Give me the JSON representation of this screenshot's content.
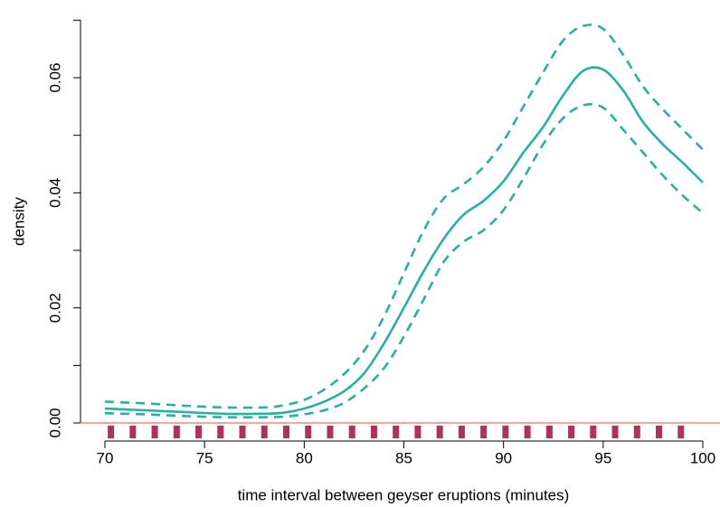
{
  "chart_data": {
    "type": "line",
    "xlabel": "time interval between geyser eruptions (minutes)",
    "ylabel": "density",
    "x": [
      70,
      72,
      74,
      76,
      78,
      79,
      80,
      81,
      82,
      83,
      84,
      85,
      86,
      87,
      88,
      89,
      90,
      91,
      92,
      93,
      94,
      95,
      96,
      97,
      98,
      99,
      100
    ],
    "series": [
      {
        "name": "estimate",
        "color": "#26b0a6",
        "dash": false,
        "values": [
          0.0025,
          0.0022,
          0.0019,
          0.0016,
          0.0016,
          0.0018,
          0.0025,
          0.0037,
          0.0055,
          0.0086,
          0.0138,
          0.02,
          0.0264,
          0.032,
          0.0362,
          0.0386,
          0.042,
          0.047,
          0.0515,
          0.057,
          0.0612,
          0.0614,
          0.0578,
          0.0523,
          0.0484,
          0.0452,
          0.0418
        ]
      },
      {
        "name": "upper",
        "color": "#26b0a6",
        "dash": true,
        "values": [
          0.0037,
          0.0034,
          0.003,
          0.0027,
          0.0027,
          0.0031,
          0.004,
          0.0058,
          0.0085,
          0.0125,
          0.0185,
          0.026,
          0.0335,
          0.039,
          0.0415,
          0.0445,
          0.049,
          0.055,
          0.061,
          0.0665,
          0.069,
          0.0685,
          0.064,
          0.0585,
          0.0545,
          0.051,
          0.0475
        ]
      },
      {
        "name": "lower",
        "color": "#26b0a6",
        "dash": true,
        "values": [
          0.0017,
          0.0015,
          0.0012,
          0.001,
          0.001,
          0.0011,
          0.0015,
          0.0022,
          0.0035,
          0.006,
          0.0095,
          0.015,
          0.0215,
          0.028,
          0.0315,
          0.0335,
          0.037,
          0.0425,
          0.0485,
          0.053,
          0.0552,
          0.0548,
          0.051,
          0.047,
          0.043,
          0.0395,
          0.0365
        ]
      }
    ],
    "rug": [
      70.3,
      71.4,
      72.5,
      73.6,
      74.7,
      75.8,
      76.9,
      78,
      79.1,
      80.2,
      81.3,
      82.4,
      83.5,
      84.6,
      85.7,
      86.8,
      87.9,
      89,
      90.1,
      91.2,
      92.3,
      93.4,
      94.5,
      95.6,
      96.7,
      97.8,
      98.9
    ],
    "rug_color": "#b0305e",
    "hline": 0,
    "hline_color": "#ff6b6b",
    "xlim": [
      68.775,
      100.862
    ],
    "ylim": [
      -0.00314,
      0.07131
    ],
    "xticks": [
      70,
      75,
      80,
      85,
      90,
      95,
      100
    ],
    "yticks": [
      {
        "value": 0,
        "label": "0.00"
      },
      {
        "value": 0.02,
        "label": "0.02"
      },
      {
        "value": 0.04,
        "label": "0.04"
      },
      {
        "value": 0.06,
        "label": "0.06"
      }
    ],
    "yminor_ticks": [
      0.01,
      0.03,
      0.05,
      0.07
    ]
  }
}
